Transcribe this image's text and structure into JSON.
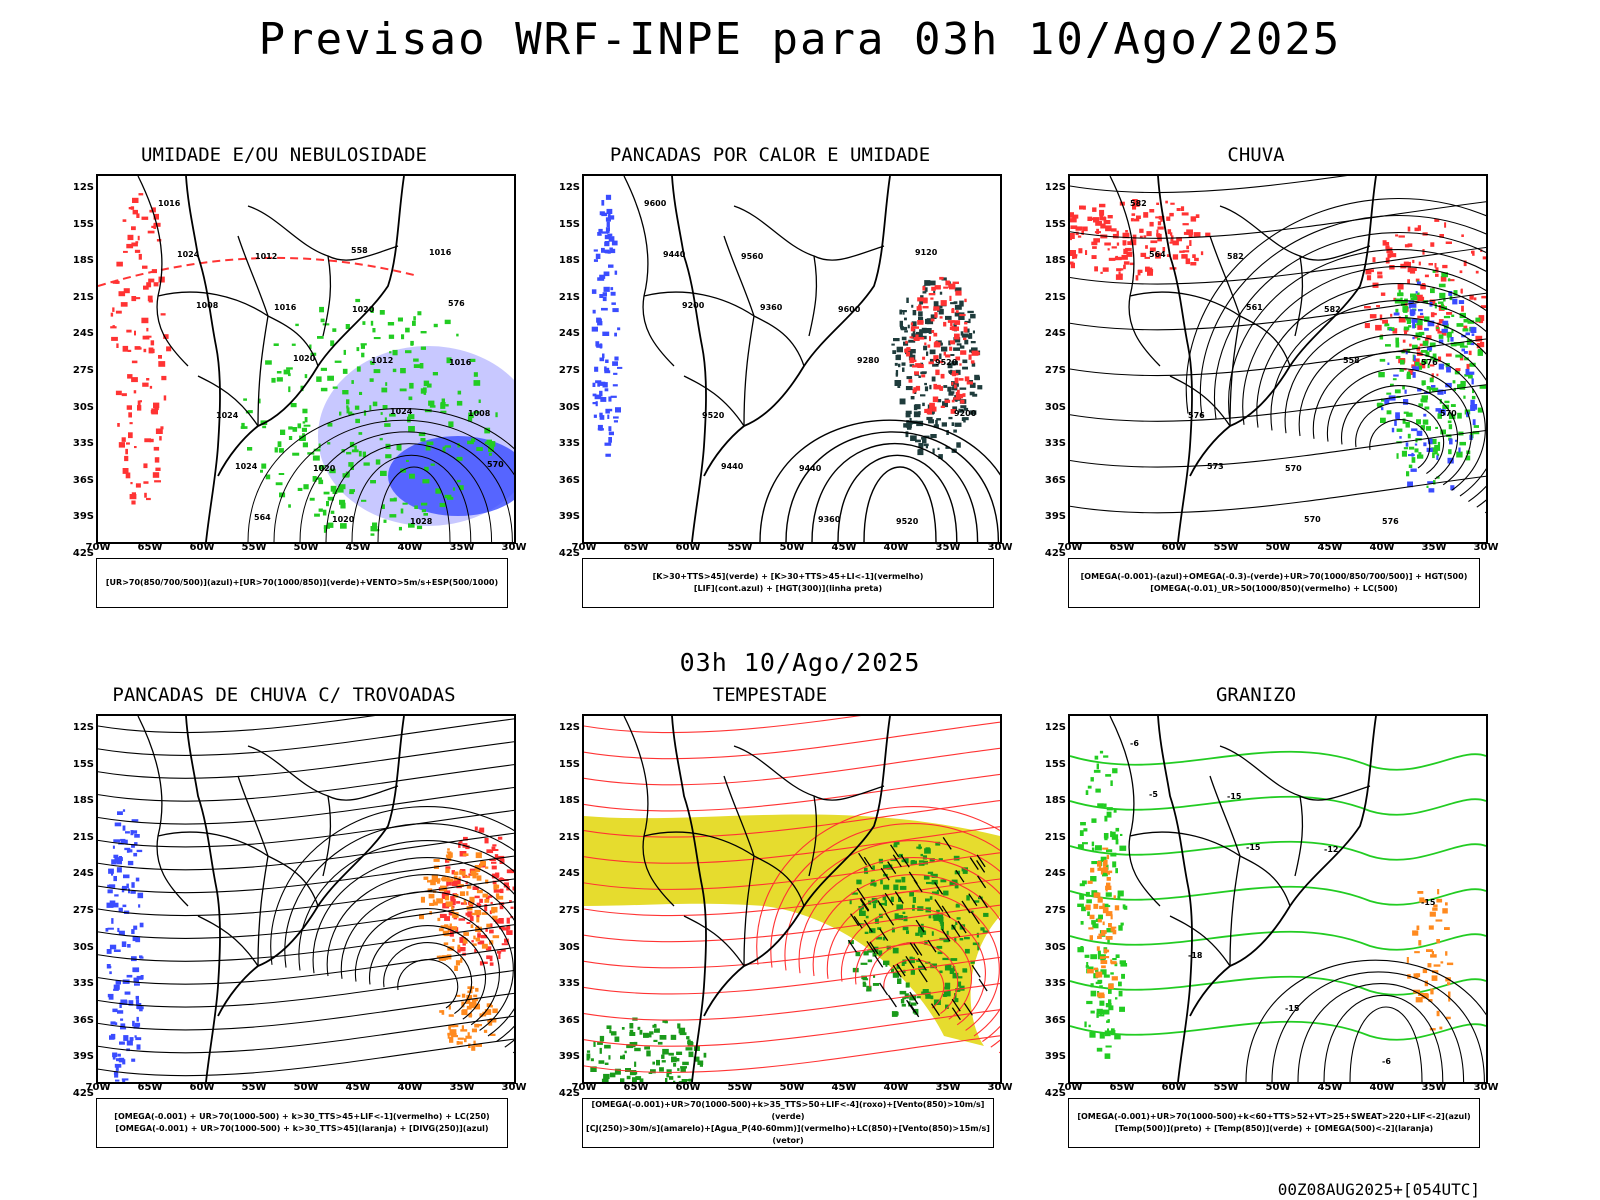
{
  "title": "Previsao WRF-INPE  para 03h 10/Ago/2025",
  "mid_title": "03h 10/Ago/2025",
  "footer": "00Z08AUG2025+[054UTC]",
  "lat_labels": [
    "12S",
    "15S",
    "18S",
    "21S",
    "24S",
    "27S",
    "30S",
    "33S",
    "36S",
    "39S",
    "42S"
  ],
  "lon_labels": [
    "70W",
    "65W",
    "60W",
    "55W",
    "50W",
    "45W",
    "40W",
    "35W",
    "30W"
  ],
  "colors": {
    "blue": "#3a4cff",
    "green": "#22cc22",
    "red": "#ff3333",
    "orange": "#ff8a1f",
    "yellow": "#e6dc2e",
    "dark": "#1f3c3c",
    "purple_shade": "#b0b0ff"
  },
  "panels": [
    {
      "title": "UMIDADE E/OU NEBULOSIDADE",
      "legend": [
        "[UR>70(850/700/500)](azul)+[UR>70(1000/850)](verde)+VENTO>5m/s+ESP(500/1000)"
      ],
      "labels": [
        "1016",
        "1012",
        "1020",
        "1016",
        "1024",
        "1020",
        "1028",
        "1024",
        "1016",
        "1012",
        "1008",
        "1024",
        "1020",
        "1016",
        "1008",
        "1020",
        "1024",
        "570",
        "564",
        "558",
        "576"
      ]
    },
    {
      "title": "PANCADAS POR CALOR E UMIDADE",
      "legend": [
        "[K>30+TTS>45](verde) + [K>30+TTS>45+LI<-1](vermelho)",
        "[LIF](cont.azul) + [HGT(300)](linha preta)"
      ],
      "labels": [
        "9600",
        "9560",
        "9600",
        "9520",
        "9520",
        "9440",
        "9520",
        "9440",
        "9360",
        "9280",
        "9200",
        "9440",
        "9360",
        "9120",
        "9200"
      ]
    },
    {
      "title": "CHUVA",
      "legend": [
        "[OMEGA(-0.001)-(azul)+OMEGA(-0.3)-(verde)+UR>70(1000/850/700/500)] + HGT(500)",
        "[OMEGA(-0.01)_UR>50(1000/850)(vermelho) + LC(500)"
      ],
      "labels": [
        "582",
        "582",
        "582",
        "576",
        "576",
        "570",
        "576",
        "564",
        "561",
        "558",
        "570",
        "573",
        "570"
      ]
    },
    {
      "title": "PANCADAS DE CHUVA C/ TROVOADAS",
      "legend": [
        "[OMEGA(-0.001) + UR>70(1000-500) + k>30_TTS>45+LIF<-1](vermelho) + LC(250)",
        "[OMEGA(-0.001) + UR>70(1000-500) + k>30_TTS>45](laranja) + [DIVG(250)](azul)"
      ],
      "labels": []
    },
    {
      "title": "TEMPESTADE",
      "legend": [
        "[OMEGA(-0.001)+UR>70(1000-500)+k>35_TTS>50+LIF<-4](roxo)+[Vento(850)>10m/s](verde)",
        "[CJ(250)>30m/s](amarelo)+[Agua_P(40-60mm)](vermelho)+LC(850)+[Vento(850)>15m/s](vetor)"
      ],
      "labels": []
    },
    {
      "title": "GRANIZO",
      "legend": [
        "[OMEGA(-0.001)+UR>70(1000-500)+k<60+TTS>52+VT>25+SWEAT>220+LIF<-2](azul)",
        "[Temp(500)](preto) + [Temp(850)](verde) + [OMEGA(500)<-2](laranja)"
      ],
      "labels": [
        "-6",
        "-15",
        "-12",
        "-15",
        "-18",
        "-15",
        "-6",
        "-5",
        "-15"
      ]
    }
  ]
}
